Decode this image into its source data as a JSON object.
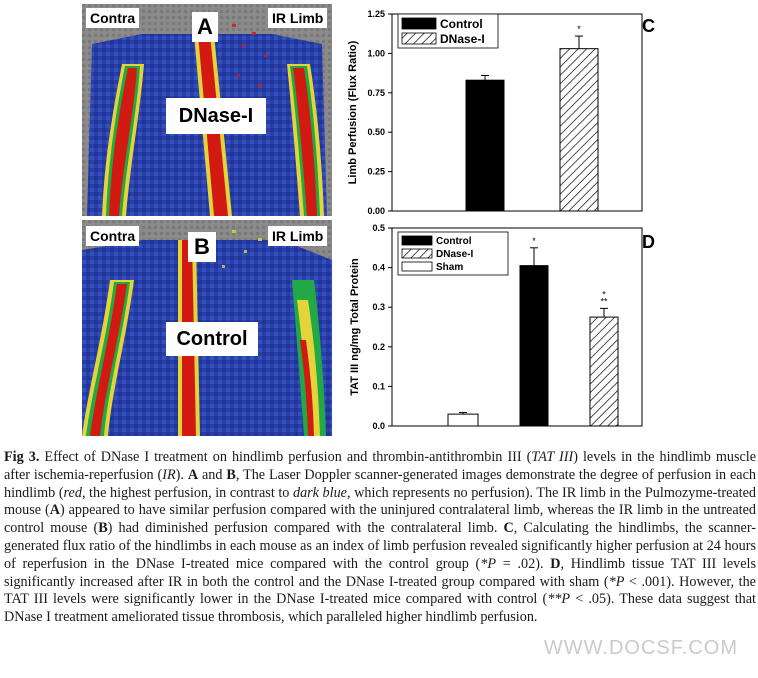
{
  "panel_a": {
    "left_label": "Contra",
    "letter": "A",
    "right_label": "IR Limb",
    "treatment": "DNase-I"
  },
  "panel_b": {
    "left_label": "Contra",
    "letter": "B",
    "right_label": "IR Limb",
    "treatment": "Control"
  },
  "chart_data": [
    {
      "panel": "C",
      "type": "bar",
      "ylabel": "Limb Perfusion (Flux Ratio)",
      "ylim": [
        0,
        1.25
      ],
      "yticks": [
        "0.00",
        "0.25",
        "0.50",
        "0.75",
        "1.00",
        "1.25"
      ],
      "legend": [
        "Control",
        "DNase-I"
      ],
      "legend_position": "top-left",
      "series": [
        {
          "name": "Control",
          "value": 0.83,
          "error": 0.03,
          "pattern": "solid",
          "mark": ""
        },
        {
          "name": "DNase-I",
          "value": 1.03,
          "error": 0.08,
          "pattern": "hatched",
          "mark": "*"
        }
      ]
    },
    {
      "panel": "D",
      "type": "bar",
      "ylabel": "TAT III ng/mg Total Protein",
      "ylim": [
        0,
        0.5
      ],
      "yticks": [
        "0.0",
        "0.1",
        "0.2",
        "0.3",
        "0.4",
        "0.5"
      ],
      "legend": [
        "Control",
        "DNase-I",
        "Sham"
      ],
      "legend_position": "top-left",
      "series": [
        {
          "name": "Sham",
          "value": 0.03,
          "error": 0.004,
          "pattern": "open",
          "mark": ""
        },
        {
          "name": "Control",
          "value": 0.405,
          "error": 0.045,
          "pattern": "solid",
          "mark": "*"
        },
        {
          "name": "DNase-I",
          "value": 0.275,
          "error": 0.022,
          "pattern": "hatched",
          "mark": "*\n**"
        }
      ]
    }
  ],
  "caption": {
    "fig": "Fig 3.",
    "text_html": "<span class=\"bold\">Fig 3.</span>  Effect of DNase I treatment on hindlimb perfusion and thrombin-antithrombin III (<span class=\"ital\">TAT III</span>) levels in the hindlimb muscle after ischemia-reperfusion (<span class=\"ital\">IR</span>). <span class=\"bold\">A</span> and <span class=\"bold\">B</span>, The Laser Doppler scanner-generated images demonstrate the degree of perfusion in each hindlimb (<span class=\"ital\">red</span>, the highest perfusion, in contrast to <span class=\"ital\">dark blue</span>, which represents no perfusion). The IR limb in the Pulmozyme-treated mouse (<span class=\"bold\">A</span>) appeared to have similar perfusion compared with the uninjured contralateral limb, whereas the IR limb in the untreated control mouse (<span class=\"bold\">B</span>) had diminished perfusion compared with the contralateral limb. <span class=\"bold\">C</span>, Calculating the hindlimbs, the scanner-generated flux ratio of the hindlimbs in each mouse as an index of limb perfusion revealed significantly higher perfusion at 24 hours of reperfusion in the DNase I-treated mice compared with the control group (<span class=\"ital\">*P</span> = .02). <span class=\"bold\">D</span>, Hindlimb tissue TAT III levels significantly increased after IR in both the control and the DNase I-treated group compared with sham (<span class=\"ital\">*P</span> &lt; .001). However, the TAT III levels were significantly lower in the DNase I-treated mice compared with control (<span class=\"ital\">**P</span> &lt; .05). These data suggest that DNase I treatment ameliorated tissue thrombosis, which paralleled higher hindlimb perfusion."
  },
  "watermark": "WWW.DOCSF.COM"
}
